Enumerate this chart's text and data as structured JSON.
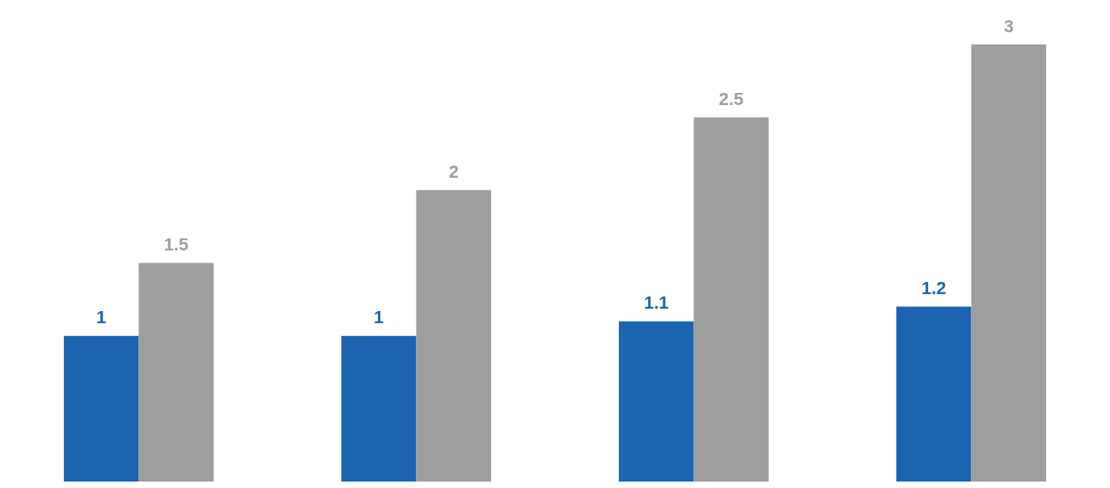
{
  "chart_data": {
    "type": "bar",
    "categories": [
      null,
      null,
      null,
      null
    ],
    "data_labels": true,
    "grid": false,
    "series": [
      {
        "color": "#1a64b0",
        "values": [
          1,
          1,
          1.1,
          1.2
        ]
      },
      {
        "color": "#9e9e9e",
        "values": [
          1.5,
          2,
          2.5,
          3
        ]
      }
    ]
  }
}
